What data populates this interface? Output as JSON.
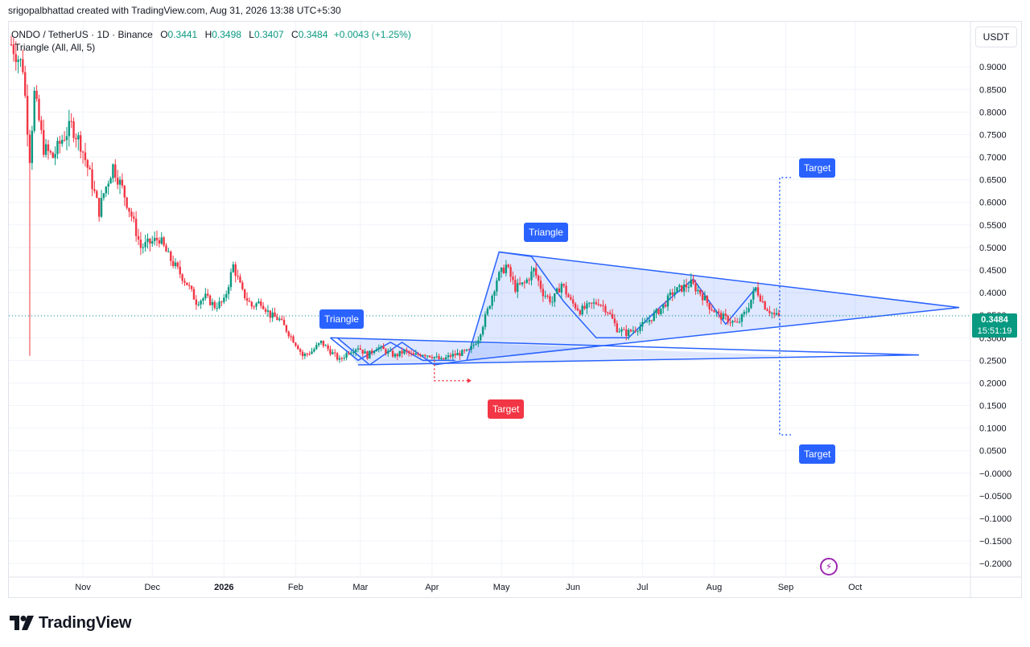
{
  "credit": "srigopalbhattad created with TradingView.com, Aug 31, 2026 13:38 UTC+5:30",
  "legend": {
    "symbol": "ONDO / TetherUS · 1D · Binance",
    "o_label": "O",
    "o": "0.3441",
    "h_label": "H",
    "h": "0.3498",
    "l_label": "L",
    "l": "0.3407",
    "c_label": "C",
    "c": "0.3484",
    "change": "+0.0043 (+1.25%)",
    "indicator": "Triangle (All, All, 5)"
  },
  "currency_button": "USDT",
  "last_price": {
    "price": "0.3484",
    "countdown": "15:51:19"
  },
  "labels": {
    "triangle_1": "Triangle",
    "triangle_2": "Triangle",
    "target_down": "Target",
    "target_up": "Target",
    "target_low": "Target"
  },
  "brand": "TradingView",
  "colors": {
    "up": "#089981",
    "down": "#f23645",
    "pattern": "#2962ff",
    "pattern_fill": "rgba(41,98,255,0.15)",
    "target_red": "#f23645"
  },
  "icons": {
    "logo": "tradingview-logo-icon",
    "alert": "lightning-icon"
  },
  "chart_data": {
    "type": "candlestick",
    "title": "",
    "symbol": "ONDO/USDT",
    "interval": "1D",
    "y_axis": {
      "ticks": [
        "0.9000",
        "0.8500",
        "0.8000",
        "0.7500",
        "0.7000",
        "0.6500",
        "0.6000",
        "0.5500",
        "0.5000",
        "0.4500",
        "0.4000",
        "0.3500",
        "0.3000",
        "0.2500",
        "0.2000",
        "0.1500",
        "0.1000",
        "0.0500",
        "−0.0000",
        "−0.0500",
        "−0.1000",
        "−0.1500",
        "−0.2000"
      ],
      "tick_values": [
        0.9,
        0.85,
        0.8,
        0.75,
        0.7,
        0.65,
        0.6,
        0.55,
        0.5,
        0.45,
        0.4,
        0.35,
        0.3,
        0.25,
        0.2,
        0.15,
        0.1,
        0.05,
        0,
        -0.05,
        -0.1,
        -0.15,
        -0.2
      ],
      "range": [
        -0.23,
        1.0
      ]
    },
    "x_axis": {
      "ticks": [
        "Nov",
        "Dec",
        "2026",
        "Feb",
        "Mar",
        "Apr",
        "May",
        "Jun",
        "Jul",
        "Aug",
        "Sep",
        "Oct"
      ],
      "tick_days": [
        31,
        61,
        92,
        123,
        151,
        182,
        212,
        243,
        273,
        304,
        335,
        365
      ],
      "range_days": [
        0,
        410
      ]
    },
    "price_path": [
      [
        0,
        0.95
      ],
      [
        5,
        0.9
      ],
      [
        8,
        0.7
      ],
      [
        10,
        0.84
      ],
      [
        14,
        0.72
      ],
      [
        18,
        0.7
      ],
      [
        22,
        0.74
      ],
      [
        26,
        0.77
      ],
      [
        30,
        0.73
      ],
      [
        34,
        0.66
      ],
      [
        38,
        0.58
      ],
      [
        40,
        0.62
      ],
      [
        44,
        0.68
      ],
      [
        48,
        0.63
      ],
      [
        52,
        0.57
      ],
      [
        56,
        0.5
      ],
      [
        60,
        0.51
      ],
      [
        64,
        0.52
      ],
      [
        68,
        0.48
      ],
      [
        72,
        0.45
      ],
      [
        76,
        0.42
      ],
      [
        80,
        0.38
      ],
      [
        84,
        0.39
      ],
      [
        88,
        0.37
      ],
      [
        92,
        0.38
      ],
      [
        96,
        0.46
      ],
      [
        100,
        0.4
      ],
      [
        104,
        0.37
      ],
      [
        108,
        0.38
      ],
      [
        112,
        0.35
      ],
      [
        116,
        0.34
      ],
      [
        120,
        0.31
      ],
      [
        124,
        0.28
      ],
      [
        126,
        0.26
      ],
      [
        130,
        0.27
      ],
      [
        134,
        0.29
      ],
      [
        138,
        0.27
      ],
      [
        142,
        0.25
      ],
      [
        146,
        0.27
      ],
      [
        150,
        0.28
      ],
      [
        154,
        0.26
      ],
      [
        158,
        0.28
      ],
      [
        162,
        0.27
      ],
      [
        166,
        0.26
      ],
      [
        170,
        0.27
      ],
      [
        174,
        0.26
      ],
      [
        178,
        0.265
      ],
      [
        182,
        0.26
      ],
      [
        186,
        0.25
      ],
      [
        190,
        0.26
      ],
      [
        194,
        0.265
      ],
      [
        198,
        0.27
      ],
      [
        202,
        0.3
      ],
      [
        206,
        0.36
      ],
      [
        210,
        0.43
      ],
      [
        214,
        0.46
      ],
      [
        218,
        0.41
      ],
      [
        222,
        0.42
      ],
      [
        226,
        0.45
      ],
      [
        230,
        0.4
      ],
      [
        234,
        0.38
      ],
      [
        238,
        0.42
      ],
      [
        242,
        0.38
      ],
      [
        246,
        0.36
      ],
      [
        250,
        0.37
      ],
      [
        254,
        0.38
      ],
      [
        258,
        0.36
      ],
      [
        262,
        0.32
      ],
      [
        266,
        0.31
      ],
      [
        270,
        0.32
      ],
      [
        274,
        0.33
      ],
      [
        278,
        0.35
      ],
      [
        282,
        0.37
      ],
      [
        286,
        0.4
      ],
      [
        290,
        0.41
      ],
      [
        294,
        0.42
      ],
      [
        298,
        0.4
      ],
      [
        302,
        0.37
      ],
      [
        306,
        0.35
      ],
      [
        310,
        0.34
      ],
      [
        314,
        0.33
      ],
      [
        318,
        0.36
      ],
      [
        322,
        0.41
      ],
      [
        326,
        0.37
      ],
      [
        330,
        0.35
      ],
      [
        332,
        0.348
      ]
    ],
    "patterns": [
      {
        "name": "Triangle",
        "points": [
          [
            141,
            0.3
          ],
          [
            155,
            0.24
          ],
          [
            169,
            0.29
          ],
          [
            183,
            0.24
          ],
          [
            197,
            0.25
          ],
          [
            211,
            0.49
          ],
          [
            225,
            0.48
          ],
          [
            239,
            0.38
          ],
          [
            253,
            0.3
          ],
          [
            267,
            0.3
          ],
          [
            281,
            0.37
          ],
          [
            295,
            0.43
          ],
          [
            309,
            0.33
          ],
          [
            322,
            0.41
          ]
        ]
      },
      {
        "name": "Triangle",
        "points": [
          [
            138,
            0.3
          ],
          [
            150,
            0.25
          ],
          [
            164,
            0.29
          ],
          [
            178,
            0.25
          ],
          [
            192,
            0.25
          ]
        ]
      }
    ],
    "targets": [
      {
        "label": "Target",
        "value": 0.205,
        "color": "#f23645"
      },
      {
        "label": "Target",
        "value": 0.655,
        "color": "#2962ff"
      },
      {
        "label": "Target",
        "value": 0.085,
        "color": "#2962ff"
      }
    ],
    "last_price": 0.3484
  }
}
